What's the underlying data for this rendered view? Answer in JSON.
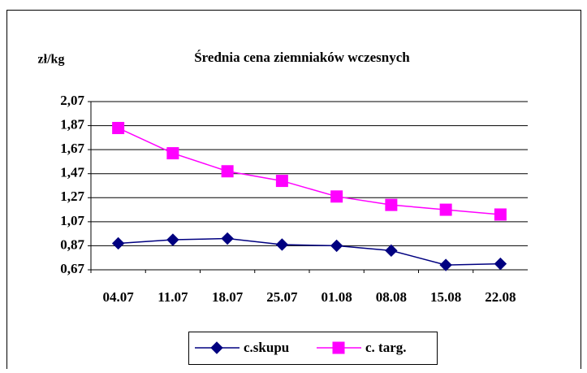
{
  "chart_data": {
    "type": "line",
    "title": "Średnia cena ziemniaków wczesnych",
    "y_label": "zł/kg",
    "categories": [
      "04.07",
      "11.07",
      "18.07",
      "25.07",
      "01.08",
      "08.08",
      "15.08",
      "22.08"
    ],
    "series": [
      {
        "name": "c.skupu",
        "color": "#000080",
        "marker": "diamond",
        "values": [
          0.89,
          0.92,
          0.93,
          0.88,
          0.87,
          0.83,
          0.71,
          0.72
        ]
      },
      {
        "name": "c. targ.",
        "color": "#ff00ff",
        "marker": "square",
        "values": [
          1.85,
          1.64,
          1.49,
          1.41,
          1.28,
          1.21,
          1.17,
          1.13
        ]
      }
    ],
    "ylim": [
      0.67,
      2.07
    ],
    "yticks": [
      {
        "value": 0.67,
        "label": "0,67"
      },
      {
        "value": 0.87,
        "label": "0,87"
      },
      {
        "value": 1.07,
        "label": "1,07"
      },
      {
        "value": 1.27,
        "label": "1,27"
      },
      {
        "value": 1.47,
        "label": "1,47"
      },
      {
        "value": 1.67,
        "label": "1,67"
      },
      {
        "value": 1.87,
        "label": "1,87"
      },
      {
        "value": 2.07,
        "label": "2,07"
      }
    ],
    "grid": true,
    "legend": "bottom"
  }
}
